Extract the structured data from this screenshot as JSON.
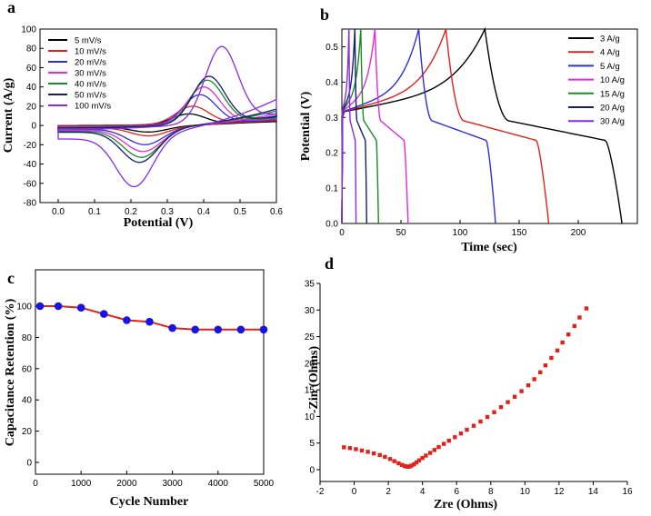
{
  "chart_data": [
    {
      "panel": "a",
      "type": "line",
      "xlabel": "Potential (V)",
      "ylabel": "Current (A/g)",
      "xlim": [
        -0.05,
        0.6
      ],
      "ylim": [
        -80,
        100
      ],
      "xticks": [
        "0.0",
        "0.1",
        "0.2",
        "0.3",
        "0.4",
        "0.5",
        "0.6"
      ],
      "yticks": [
        "-80",
        "-60",
        "-40",
        "-20",
        "0",
        "20",
        "40",
        "60",
        "80",
        "100"
      ],
      "series": [
        {
          "name": "5 mV/s",
          "color": "#000000",
          "anodic_peak": [
            0.36,
            12
          ],
          "cathodic_peak": [
            0.25,
            -7
          ],
          "ret_left": -1.5,
          "fwd_left": 0,
          "right_top": 5,
          "right_bot": 4
        },
        {
          "name": "10 mV/s",
          "color": "#e0221b",
          "anodic_peak": [
            0.37,
            20
          ],
          "cathodic_peak": [
            0.25,
            -11
          ],
          "ret_left": -2.5,
          "fwd_left": 0,
          "right_top": 7,
          "right_bot": 5
        },
        {
          "name": "20 mV/s",
          "color": "#2d2de0",
          "anodic_peak": [
            0.39,
            32
          ],
          "cathodic_peak": [
            0.24,
            -20
          ],
          "ret_left": -4,
          "fwd_left": -1,
          "right_top": 10,
          "right_bot": 6
        },
        {
          "name": "30 mV/s",
          "color": "#e52ad8",
          "anodic_peak": [
            0.4,
            40
          ],
          "cathodic_peak": [
            0.235,
            -27
          ],
          "ret_left": -5,
          "fwd_left": -1.5,
          "right_top": 12,
          "right_bot": 7
        },
        {
          "name": "40 mV/s",
          "color": "#1b8a27",
          "anodic_peak": [
            0.41,
            47
          ],
          "cathodic_peak": [
            0.23,
            -33
          ],
          "ret_left": -6,
          "fwd_left": -2,
          "right_top": 15,
          "right_bot": 8
        },
        {
          "name": "50 mV/s",
          "color": "#13206b",
          "anodic_peak": [
            0.415,
            51
          ],
          "cathodic_peak": [
            0.225,
            -38
          ],
          "ret_left": -7,
          "fwd_left": -2.5,
          "right_top": 17,
          "right_bot": 9
        },
        {
          "name": "100 mV/s",
          "color": "#8a2be2",
          "anodic_peak": [
            0.45,
            82
          ],
          "cathodic_peak": [
            0.21,
            -62
          ],
          "ret_left": -14,
          "fwd_left": -4,
          "right_top": 27,
          "right_bot": 12
        }
      ]
    },
    {
      "panel": "b",
      "type": "line",
      "xlabel": "Time (sec)",
      "ylabel": "Potential (V)",
      "xlim": [
        0,
        250
      ],
      "ylim": [
        0,
        0.55
      ],
      "xticks": [
        "0",
        "50",
        "100",
        "150",
        "200"
      ],
      "yticks": [
        "0.0",
        "0.1",
        "0.2",
        "0.3",
        "0.4",
        "0.5"
      ],
      "series": [
        {
          "name": "3 A/g",
          "color": "#000000",
          "t_charge": 121,
          "t_end": 237
        },
        {
          "name": "4 A/g",
          "color": "#e0221b",
          "t_charge": 88,
          "t_end": 175
        },
        {
          "name": "5 A/g",
          "color": "#2d2de0",
          "t_charge": 65,
          "t_end": 130
        },
        {
          "name": "10 A/g",
          "color": "#e52ad8",
          "t_charge": 28,
          "t_end": 56
        },
        {
          "name": "15 A/g",
          "color": "#1b8a27",
          "t_charge": 16,
          "t_end": 31
        },
        {
          "name": "20 A/g",
          "color": "#13206b",
          "t_charge": 11,
          "t_end": 21
        },
        {
          "name": "30 A/g",
          "color": "#8a2be2",
          "t_charge": 6,
          "t_end": 12
        }
      ]
    },
    {
      "panel": "c",
      "type": "line",
      "xlabel": "Cycle Number",
      "ylabel": "Capacitance Retention (%)",
      "xlim": [
        0,
        5000
      ],
      "ylim": [
        0,
        100
      ],
      "xticks": [
        "0",
        "1000",
        "2000",
        "3000",
        "4000",
        "5000"
      ],
      "yticks": [
        "0",
        "20",
        "40",
        "60",
        "80",
        "100"
      ],
      "x": [
        100,
        500,
        1000,
        1500,
        2000,
        2500,
        3000,
        3500,
        4000,
        4500,
        5000
      ],
      "y": [
        100,
        100,
        99,
        95,
        91,
        90,
        86,
        85,
        85,
        85,
        85
      ],
      "line_color": "#e0221b",
      "marker_color": "#1515e8"
    },
    {
      "panel": "d",
      "type": "scatter",
      "xlabel": "Zre (Ohms)",
      "ylabel": "-Zin (Ohms)",
      "xlim": [
        -2,
        16
      ],
      "ylim": [
        -1,
        35
      ],
      "xticks": [
        "-2",
        "0",
        "2",
        "4",
        "6",
        "8",
        "10",
        "12",
        "14",
        "16"
      ],
      "yticks": [
        "0",
        "5",
        "10",
        "15",
        "20",
        "25",
        "30",
        "35"
      ],
      "marker_color": "#e0221b",
      "x": [
        -0.6,
        -0.25,
        0.1,
        0.45,
        0.8,
        1.15,
        1.5,
        1.8,
        2.1,
        2.35,
        2.6,
        2.8,
        2.95,
        3.05,
        3.15,
        3.25,
        3.35,
        3.5,
        3.65,
        3.8,
        4.0,
        4.2,
        4.45,
        4.7,
        4.95,
        5.25,
        5.55,
        5.9,
        6.25,
        6.6,
        7.0,
        7.4,
        7.8,
        8.2,
        8.6,
        9.0,
        9.4,
        9.8,
        10.2,
        10.55,
        10.9,
        11.2,
        11.55,
        11.9,
        12.2,
        12.55,
        12.9,
        13.2,
        13.6
      ],
      "y": [
        4.2,
        4.05,
        3.85,
        3.6,
        3.35,
        3.05,
        2.75,
        2.4,
        2.0,
        1.6,
        1.2,
        0.9,
        0.7,
        0.6,
        0.55,
        0.6,
        0.75,
        1.0,
        1.35,
        1.75,
        2.2,
        2.65,
        3.15,
        3.7,
        4.25,
        4.85,
        5.45,
        6.1,
        6.8,
        7.5,
        8.25,
        9.05,
        9.9,
        10.8,
        11.75,
        12.7,
        13.7,
        14.75,
        15.85,
        17.0,
        18.3,
        19.6,
        21.0,
        22.4,
        23.9,
        25.4,
        27.0,
        28.6,
        30.3
      ]
    }
  ]
}
